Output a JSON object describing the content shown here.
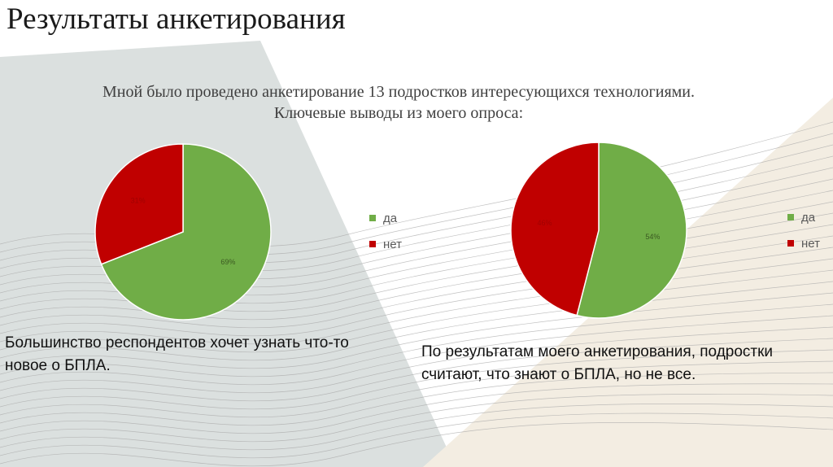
{
  "slide": {
    "title": "Результаты анкетирования",
    "intro_line1": "Мной было проведено анкетирование 13 подростков интересующихся технологиями.",
    "intro_line2": "Ключевые выводы из моего опроса:",
    "caption_left": "Большинство респондентов хочет узнать что-то новое о БПЛА.",
    "caption_right": "По результатам моего анкетирования, подростки считают, что знают о БПЛА, но не все."
  },
  "colors": {
    "yes": "#70ad47",
    "no": "#c00000"
  },
  "chart_data": [
    {
      "type": "pie",
      "categories": [
        "да",
        "нет"
      ],
      "values": [
        69,
        31
      ],
      "labels": [
        "69%",
        "31%"
      ],
      "legend": [
        "да",
        "нет"
      ],
      "legend_position": "right"
    },
    {
      "type": "pie",
      "categories": [
        "да",
        "нет"
      ],
      "values": [
        54,
        46
      ],
      "labels": [
        "54%",
        "46%"
      ],
      "legend": [
        "да",
        "нет"
      ],
      "legend_position": "right"
    }
  ]
}
